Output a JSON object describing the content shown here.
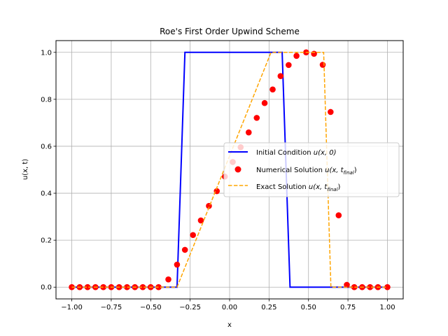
{
  "chart_data": {
    "type": "line",
    "title": "Roe's First Order Upwind Scheme",
    "xlabel": "x",
    "ylabel": "u(x, t)",
    "xlim": [
      -1.1,
      1.1
    ],
    "ylim": [
      -0.05,
      1.05
    ],
    "grid": true,
    "legend_position": "center-right",
    "x_ticks": [
      -1.0,
      -0.75,
      -0.5,
      -0.25,
      0.0,
      0.25,
      0.5,
      0.75,
      1.0
    ],
    "x_tick_labels": [
      "−1.00",
      "−0.75",
      "−0.50",
      "−0.25",
      "0.00",
      "0.25",
      "0.50",
      "0.75",
      "1.00"
    ],
    "y_ticks": [
      0.0,
      0.2,
      0.4,
      0.6,
      0.8,
      1.0
    ],
    "y_tick_labels": [
      "0.0",
      "0.2",
      "0.4",
      "0.6",
      "0.8",
      "1.0"
    ],
    "series": [
      {
        "name": "Initial Condition u(x, 0)",
        "kind": "line",
        "color": "#0000ff",
        "x": [
          -1.0,
          -0.333,
          -0.283,
          0.333,
          0.383,
          1.0
        ],
        "y": [
          0,
          0,
          1,
          1,
          0,
          0
        ]
      },
      {
        "name": "Numerical Solution u(x, t_final)",
        "kind": "scatter",
        "color": "#ff0000",
        "x": [
          -1.0,
          -0.95,
          -0.9,
          -0.85,
          -0.8,
          -0.75,
          -0.7,
          -0.65,
          -0.6,
          -0.55,
          -0.5,
          -0.45,
          -0.388,
          -0.333,
          -0.283,
          -0.232,
          -0.182,
          -0.131,
          -0.081,
          -0.03,
          0.02,
          0.07,
          0.121,
          0.172,
          0.222,
          0.273,
          0.323,
          0.374,
          0.424,
          0.485,
          0.535,
          0.59,
          0.64,
          0.691,
          0.743,
          0.79,
          0.84,
          0.89,
          0.94,
          1.0
        ],
        "y": [
          0,
          0,
          0,
          0,
          0,
          0,
          0,
          0,
          0,
          0,
          0,
          0,
          0.033,
          0.096,
          0.159,
          0.222,
          0.284,
          0.346,
          0.409,
          0.471,
          0.533,
          0.596,
          0.659,
          0.721,
          0.784,
          0.842,
          0.899,
          0.946,
          0.985,
          1.0,
          0.994,
          0.947,
          0.746,
          0.306,
          0.01,
          0,
          0,
          0,
          0,
          0
        ]
      },
      {
        "name": "Exact Solution u(x, t_final)",
        "kind": "dashed-line",
        "color": "#ffa500",
        "x": [
          -1.0,
          -0.333,
          0.262,
          0.283,
          0.596,
          0.642,
          1.0
        ],
        "y": [
          0,
          0,
          0.999,
          1,
          1,
          0,
          0
        ]
      }
    ]
  },
  "legend": {
    "entries": [
      {
        "text": "Initial Condition ",
        "math": "u(x, 0)"
      },
      {
        "text": "Numerical Solution ",
        "math": "u(x, t",
        "sub": "final",
        "close": ")"
      },
      {
        "text": "Exact Solution ",
        "math": "u(x, t",
        "sub": "final",
        "close": ")"
      }
    ]
  }
}
